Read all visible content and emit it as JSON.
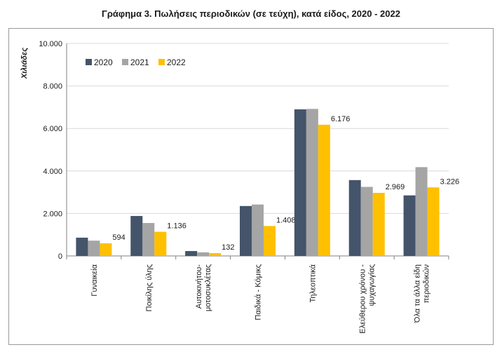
{
  "chart_data": {
    "type": "bar",
    "title": "Γράφημα 3. Πωλήσεις περιοδικών (σε τεύχη), κατά είδος, 2020 - 2022",
    "ylabel": "Χιλιάδες",
    "xlabel": "",
    "ylim": [
      0,
      10000
    ],
    "yticks": [
      0,
      2000,
      4000,
      6000,
      8000,
      10000
    ],
    "ytick_labels": [
      "0",
      "2.000",
      "4.000",
      "6.000",
      "8.000",
      "10.000"
    ],
    "grid": true,
    "legend_position": "top-left",
    "categories": [
      [
        "Γυναικεία"
      ],
      [
        "Ποικίλης ύλης"
      ],
      [
        "Αυτοκινήτου-",
        "μοτοσυκλέτας"
      ],
      [
        "Παιδικά - Κόμικς"
      ],
      [
        "Τηλεοπτικά"
      ],
      [
        "Ελεύθερου χρόνου -",
        "ψυχαγωγίας"
      ],
      [
        "Όλα τα άλλα είδη",
        "περιοδικών"
      ]
    ],
    "series": [
      {
        "name": "2020",
        "color": "#44546a",
        "values": [
          860,
          1880,
          230,
          2350,
          6900,
          3570,
          2850
        ]
      },
      {
        "name": "2021",
        "color": "#a5a5a5",
        "values": [
          720,
          1550,
          170,
          2420,
          6920,
          3250,
          4180
        ]
      },
      {
        "name": "2022",
        "color": "#ffc000",
        "values": [
          594,
          1136,
          132,
          1408,
          6176,
          2969,
          3226
        ]
      }
    ],
    "data_labels": {
      "series": "2022",
      "labels": [
        "594",
        "1.136",
        "132",
        "1.408",
        "6.176",
        "2.969",
        "3.226"
      ]
    }
  }
}
